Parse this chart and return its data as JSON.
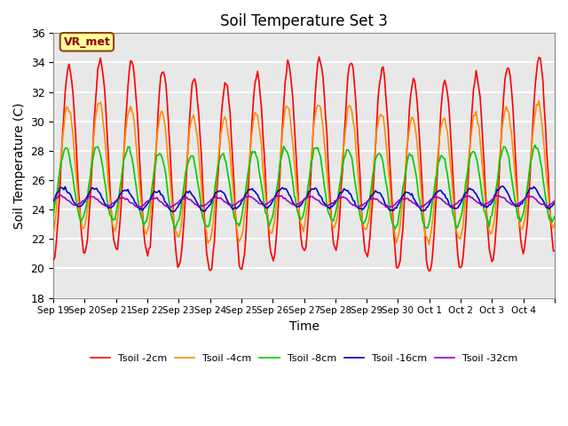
{
  "title": "Soil Temperature Set 3",
  "xlabel": "Time",
  "ylabel": "Soil Temperature (C)",
  "ylim": [
    18,
    36
  ],
  "yticks": [
    18,
    20,
    22,
    24,
    26,
    28,
    30,
    32,
    34,
    36
  ],
  "xlim": [
    0,
    16
  ],
  "num_points": 384,
  "lines": {
    "Tsoil -2cm": {
      "color": "#FF0000"
    },
    "Tsoil -4cm": {
      "color": "#FF8C00"
    },
    "Tsoil -8cm": {
      "color": "#00CC00"
    },
    "Tsoil -16cm": {
      "color": "#0000CC"
    },
    "Tsoil -32cm": {
      "color": "#9900CC"
    }
  },
  "xtick_positions": [
    0,
    1,
    2,
    3,
    4,
    5,
    6,
    7,
    8,
    9,
    10,
    11,
    12,
    13,
    14,
    15,
    16
  ],
  "xtick_labels": [
    "Sep 19",
    "Sep 20",
    "Sep 21",
    "Sep 22",
    "Sep 23",
    "Sep 24",
    "Sep 25",
    "Sep 26",
    "Sep 27",
    "Sep 28",
    "Sep 29",
    "Sep 30",
    "Oct 1",
    "Oct 2",
    "Oct 3",
    "Oct 4",
    ""
  ],
  "annotation_text": "VR_met",
  "background_color": "#E8E8E8",
  "grid_color": "#FFFFFF",
  "legend_order": [
    "Tsoil -2cm",
    "Tsoil -4cm",
    "Tsoil -8cm",
    "Tsoil -16cm",
    "Tsoil -32cm"
  ]
}
